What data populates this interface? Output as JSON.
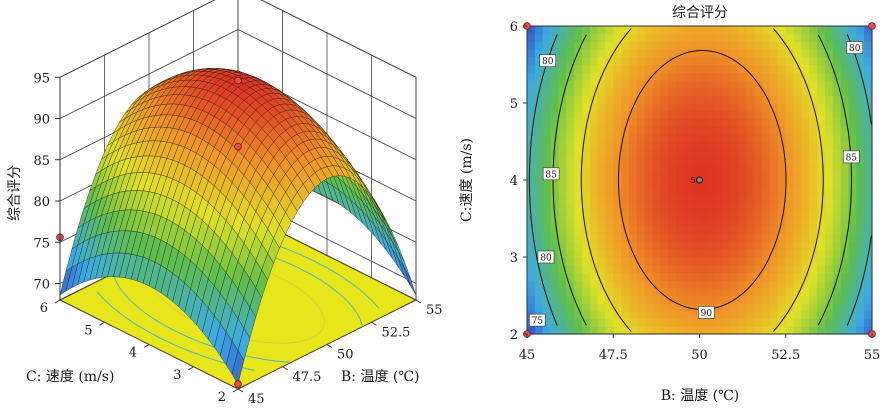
{
  "chart_data": [
    {
      "type": "surface3d",
      "zlabel": "综合评分",
      "xlabel": "C: 速度 (m/s)",
      "ylabel": "B: 温度 (℃)",
      "x_ticks": [
        "6",
        "5",
        "4",
        "3",
        "2"
      ],
      "y_ticks": [
        "55",
        "52.5",
        "50",
        "47.5",
        "45"
      ],
      "z_ticks": [
        "95",
        "90",
        "85",
        "80",
        "75",
        "70"
      ],
      "xlim": [
        2,
        6
      ],
      "ylim": [
        45,
        55
      ],
      "zlim": [
        68,
        95
      ],
      "model": {
        "b0": 94.6,
        "b_linear_b": 0,
        "b_linear_c": 0,
        "b_quad_b": 19.5,
        "b_quad_c": 6.5,
        "b_inter": 0
      },
      "design_points": [
        {
          "b": 45,
          "c": 2,
          "z": 68.6
        },
        {
          "b": 55,
          "c": 6,
          "z": 75.8
        },
        {
          "b": 45,
          "c": 6,
          "z": 75.6
        },
        {
          "b": 50,
          "c": 4,
          "z": 94.6
        }
      ],
      "floor_color": "#e6e61a"
    },
    {
      "type": "contour",
      "title": "综合评分",
      "xlabel": "B: 温度 (℃)",
      "ylabel": "C:速度 (m/s)",
      "x_ticks": [
        "45",
        "47.5",
        "50",
        "52.5",
        "55"
      ],
      "y_ticks": [
        "2",
        "3",
        "4",
        "5",
        "6"
      ],
      "xlim": [
        45,
        55
      ],
      "ylim": [
        2,
        6
      ],
      "contour_levels": [
        75,
        80,
        85,
        90
      ],
      "contour_labels": [
        {
          "text": "80",
          "b": 45.6,
          "c": 5.55
        },
        {
          "text": "80",
          "b": 54.5,
          "c": 5.72
        },
        {
          "text": "85",
          "b": 45.7,
          "c": 4.08
        },
        {
          "text": "85",
          "b": 54.4,
          "c": 4.3
        },
        {
          "text": "80",
          "b": 45.55,
          "c": 3.0
        },
        {
          "text": "75",
          "b": 45.3,
          "c": 2.18
        },
        {
          "text": "90",
          "b": 50.2,
          "c": 2.28
        }
      ],
      "center_point": {
        "b": 50,
        "c": 4,
        "label": "5"
      },
      "corner_points": [
        {
          "b": 45,
          "c": 2
        },
        {
          "b": 45,
          "c": 6
        },
        {
          "b": 55,
          "c": 2
        },
        {
          "b": 55,
          "c": 6
        }
      ]
    }
  ]
}
